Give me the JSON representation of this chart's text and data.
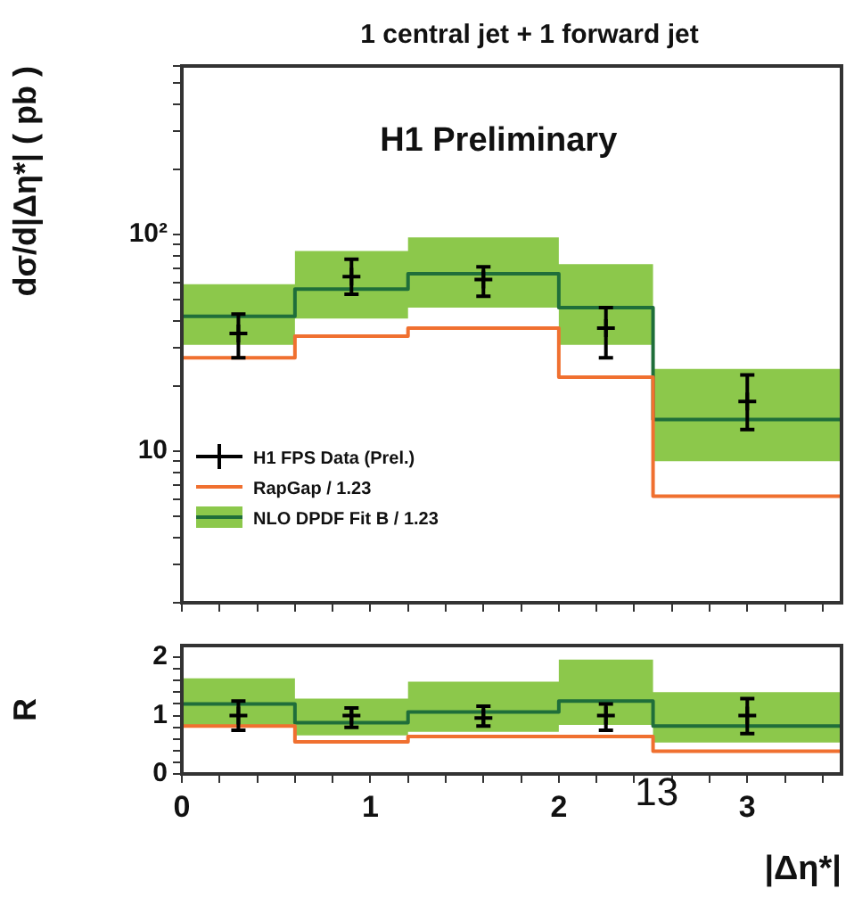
{
  "chart_data": [
    {
      "type": "step",
      "title": "1 central jet + 1 forward jet",
      "ylabel": "dσ/d|Δη*| ( pb )",
      "annotations": [
        "H1 Preliminary"
      ],
      "log": "y",
      "grid": false,
      "legend": "bottom left",
      "tick_labels": "y",
      "xlim": [
        0,
        3.5
      ],
      "xticks": [
        0,
        {
          "value": 0.2,
          "label": null
        },
        {
          "value": 0.4,
          "label": null
        },
        {
          "value": 0.6,
          "label": null
        },
        {
          "value": 0.8,
          "label": null
        },
        1,
        {
          "value": 1.2,
          "label": null
        },
        {
          "value": 1.4,
          "label": null
        },
        {
          "value": 1.6,
          "label": null
        },
        {
          "value": 1.8,
          "label": null
        },
        2,
        {
          "value": 2.2,
          "label": null
        },
        {
          "value": 2.4,
          "label": null
        },
        {
          "value": 2.6,
          "label": null
        },
        {
          "value": 2.8,
          "label": null
        },
        3,
        {
          "value": 3.2,
          "label": null
        },
        {
          "value": 3.4,
          "label": null
        }
      ],
      "ylim": [
        2,
        600
      ],
      "yticks": [
        {
          "value": 2,
          "label": null
        },
        {
          "value": 3,
          "label": null
        },
        {
          "value": 4,
          "label": null
        },
        {
          "value": 5,
          "label": null
        },
        {
          "value": 6,
          "label": null
        },
        {
          "value": 7,
          "label": null
        },
        {
          "value": 8,
          "label": null
        },
        {
          "value": 9,
          "label": null
        },
        10,
        {
          "value": 20,
          "label": null
        },
        {
          "value": 30,
          "label": null
        },
        {
          "value": 40,
          "label": null
        },
        {
          "value": 50,
          "label": null
        },
        {
          "value": 60,
          "label": null
        },
        {
          "value": 70,
          "label": null
        },
        {
          "value": 80,
          "label": null
        },
        {
          "value": 90,
          "label": null
        },
        {
          "value": 100,
          "label": "10²"
        },
        {
          "value": 200,
          "label": null
        },
        {
          "value": 300,
          "label": null
        },
        {
          "value": 400,
          "label": null
        },
        {
          "value": 500,
          "label": null
        },
        {
          "value": 600,
          "label": null
        }
      ],
      "series": [
        {
          "name": "H1 FPS Data (Prel.)",
          "type": "scatter",
          "marker": "cross",
          "color": "#000000",
          "x": [
            0.3,
            0.9,
            1.6,
            2.25,
            3.0
          ],
          "values": [
            35,
            64,
            62,
            37,
            17
          ],
          "errors": [
            [
              27,
              43
            ],
            [
              53,
              77
            ],
            [
              52,
              71
            ],
            [
              27,
              46
            ],
            [
              12.6,
              22.5
            ]
          ]
        },
        {
          "name": "RapGap / 1.23",
          "color": "#f07030",
          "x": [
            0,
            0.6,
            1.2,
            2.0,
            2.5,
            3.5
          ],
          "values": [
            27,
            34,
            37,
            22,
            6.2,
            6.2
          ]
        },
        {
          "name": "NLO DPDF Fit B / 1.23",
          "color": "#1f6e3a",
          "x": [
            0,
            0.6,
            1.2,
            2.0,
            2.5,
            3.5
          ],
          "values": [
            42,
            56,
            66,
            46,
            14,
            14
          ],
          "lower": [
            31,
            41,
            46,
            31,
            9,
            9
          ],
          "upper": [
            59,
            84,
            97,
            73,
            24,
            24
          ]
        }
      ]
    },
    {
      "type": "step",
      "ylabel": "R",
      "xlabel": "|Δη*|",
      "annotations": [
        "13"
      ],
      "grid": false,
      "xlim": [
        0,
        3.5
      ],
      "xticks": [
        0,
        {
          "value": 0.2,
          "label": null
        },
        {
          "value": 0.4,
          "label": null
        },
        {
          "value": 0.6,
          "label": null
        },
        {
          "value": 0.8,
          "label": null
        },
        1,
        {
          "value": 1.2,
          "label": null
        },
        {
          "value": 1.4,
          "label": null
        },
        {
          "value": 1.6,
          "label": null
        },
        {
          "value": 1.8,
          "label": null
        },
        2,
        {
          "value": 2.2,
          "label": null
        },
        {
          "value": 2.4,
          "label": null
        },
        {
          "value": 2.6,
          "label": null
        },
        {
          "value": 2.8,
          "label": null
        },
        3,
        {
          "value": 3.2,
          "label": null
        },
        {
          "value": 3.4,
          "label": null
        }
      ],
      "ylim": [
        0,
        2.2
      ],
      "yticks": [
        0,
        {
          "value": 0.2,
          "label": null
        },
        {
          "value": 0.4,
          "label": null
        },
        {
          "value": 0.6,
          "label": null
        },
        {
          "value": 0.8,
          "label": null
        },
        1,
        {
          "value": 1.2,
          "label": null
        },
        {
          "value": 1.4,
          "label": null
        },
        {
          "value": 1.6,
          "label": null
        },
        {
          "value": 1.8,
          "label": null
        },
        2
      ],
      "series": [
        {
          "type": "scatter",
          "marker": "cross",
          "color": "#000000",
          "x": [
            0.3,
            0.9,
            1.6,
            2.25,
            3.0
          ],
          "values": [
            1.0,
            1.0,
            0.96,
            1.0,
            1.0
          ],
          "errors": [
            [
              0.75,
              1.25
            ],
            [
              0.8,
              1.13
            ],
            [
              0.82,
              1.16
            ],
            [
              0.75,
              1.2
            ],
            [
              0.69,
              1.29
            ]
          ]
        },
        {
          "color": "#f07030",
          "x": [
            0,
            0.6,
            1.2,
            2.0,
            2.5,
            3.5
          ],
          "values": [
            0.82,
            0.55,
            0.64,
            0.64,
            0.39,
            0.39
          ]
        },
        {
          "color": "#1f6e3a",
          "x": [
            0,
            0.6,
            1.2,
            2.0,
            2.5,
            3.5
          ],
          "values": [
            1.2,
            0.88,
            1.06,
            1.25,
            0.82,
            0.82
          ],
          "lower": [
            0.84,
            0.66,
            0.72,
            0.84,
            0.54,
            0.54
          ],
          "upper": [
            1.64,
            1.29,
            1.58,
            1.96,
            1.4,
            1.4
          ]
        }
      ]
    }
  ]
}
